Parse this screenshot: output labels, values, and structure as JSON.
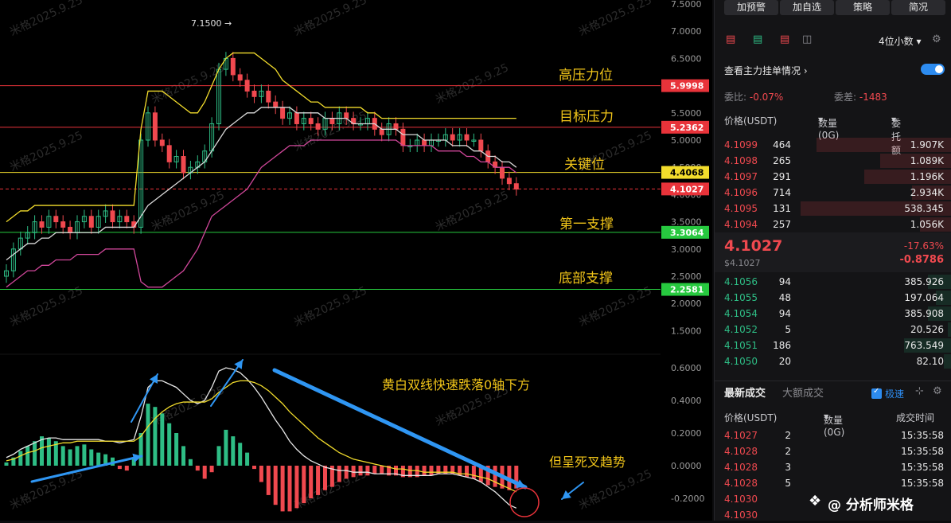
{
  "chart_data": {
    "type": "candlestick",
    "watermark": "米格2025.9.25",
    "peak_label": "7.1500",
    "price_axis": {
      "min": 1.5,
      "max": 7.5,
      "ticks": [
        "7.5000",
        "7.0000",
        "6.5000",
        "6.0000",
        "5.5000",
        "5.0000",
        "4.5000",
        "4.0000",
        "3.5000",
        "3.0000",
        "2.5000",
        "2.0000",
        "1.5000"
      ]
    },
    "macd_axis": {
      "ticks": [
        "0.6000",
        "0.4000",
        "0.2000",
        "0.0000",
        "-0.2000"
      ]
    },
    "levels": [
      {
        "label": "高压力位",
        "price": 5.9998,
        "tag": "5.9998",
        "color": "#e8333a"
      },
      {
        "label": "目标压力",
        "price": 5.2362,
        "tag": "5.2362",
        "color": "#e8333a"
      },
      {
        "label": "关键位",
        "price": 4.4068,
        "tag": "4.4068",
        "color": "#f2dc2c"
      },
      {
        "label": "",
        "price": 4.1027,
        "tag": "4.1027",
        "color": "#e8333a"
      },
      {
        "label": "第一支撑",
        "price": 3.3064,
        "tag": "3.3064",
        "color": "#27c93f"
      },
      {
        "label": "底部支撑",
        "price": 2.2581,
        "tag": "2.2581",
        "color": "#27c93f"
      }
    ],
    "annotations": [
      "黄白双线快速跌落0轴下方",
      "但呈死叉趋势"
    ],
    "closes": [
      2.6,
      3.0,
      3.2,
      3.3,
      3.5,
      3.4,
      3.6,
      3.5,
      3.4,
      3.3,
      3.5,
      3.6,
      3.4,
      3.6,
      3.7,
      3.5,
      3.6,
      3.5,
      3.4,
      5.0,
      5.5,
      5.0,
      4.9,
      4.6,
      4.7,
      4.4,
      4.5,
      4.6,
      4.8,
      5.3,
      6.3,
      6.5,
      6.2,
      6.1,
      5.9,
      5.8,
      5.9,
      5.7,
      5.6,
      5.4,
      5.5,
      5.3,
      5.4,
      5.3,
      5.2,
      5.4,
      5.3,
      5.5,
      5.4,
      5.3,
      5.3,
      5.4,
      5.2,
      5.1,
      5.3,
      5.2,
      4.9,
      4.9,
      5.0,
      4.9,
      5.0,
      5.0,
      5.1,
      5.0,
      5.1,
      5.0,
      5.0,
      4.8,
      4.6,
      4.5,
      4.3,
      4.2,
      4.1
    ],
    "upper_band": [
      3.5,
      3.6,
      3.7,
      3.7,
      3.8,
      3.8,
      3.8,
      3.8,
      3.8,
      3.8,
      3.8,
      3.8,
      3.8,
      3.8,
      3.8,
      3.8,
      3.8,
      3.8,
      3.8,
      5.2,
      5.9,
      5.9,
      5.9,
      5.8,
      5.7,
      5.6,
      5.5,
      5.5,
      5.7,
      6.0,
      6.3,
      6.5,
      6.6,
      6.6,
      6.6,
      6.6,
      6.5,
      6.4,
      6.3,
      6.1,
      6.0,
      5.9,
      5.8,
      5.7,
      5.7,
      5.6,
      5.6,
      5.6,
      5.6,
      5.6,
      5.6,
      5.5,
      5.5,
      5.4,
      5.4,
      5.4,
      5.4,
      5.4,
      5.4,
      5.4,
      5.4,
      5.4,
      5.4,
      5.4,
      5.4,
      5.4,
      5.4,
      5.4,
      5.4,
      5.4,
      5.4,
      5.4,
      5.4
    ],
    "mid_band": [
      2.8,
      2.9,
      3.0,
      3.1,
      3.1,
      3.2,
      3.2,
      3.3,
      3.3,
      3.3,
      3.3,
      3.3,
      3.3,
      3.3,
      3.4,
      3.4,
      3.4,
      3.4,
      3.4,
      3.6,
      3.8,
      3.9,
      4.0,
      4.1,
      4.2,
      4.3,
      4.4,
      4.5,
      4.6,
      4.8,
      5.0,
      5.2,
      5.3,
      5.4,
      5.5,
      5.5,
      5.6,
      5.6,
      5.6,
      5.6,
      5.6,
      5.5,
      5.5,
      5.5,
      5.5,
      5.4,
      5.4,
      5.4,
      5.4,
      5.3,
      5.3,
      5.3,
      5.3,
      5.2,
      5.2,
      5.2,
      5.1,
      5.1,
      5.1,
      5.0,
      5.0,
      5.0,
      5.0,
      4.9,
      4.9,
      4.9,
      4.8,
      4.8,
      4.7,
      4.7,
      4.6,
      4.6,
      4.5
    ],
    "lower_band": [
      2.3,
      2.4,
      2.5,
      2.6,
      2.6,
      2.7,
      2.7,
      2.8,
      2.8,
      2.8,
      2.9,
      2.9,
      2.9,
      2.9,
      3.0,
      3.0,
      3.0,
      3.0,
      3.0,
      2.4,
      2.3,
      2.3,
      2.3,
      2.4,
      2.5,
      2.6,
      2.8,
      3.0,
      3.3,
      3.6,
      3.7,
      3.8,
      3.9,
      4.0,
      4.1,
      4.3,
      4.5,
      4.6,
      4.7,
      4.8,
      4.9,
      4.9,
      4.9,
      5.0,
      5.0,
      5.0,
      5.0,
      5.0,
      5.0,
      5.0,
      5.0,
      5.0,
      5.0,
      5.0,
      5.0,
      5.0,
      4.9,
      4.9,
      4.9,
      4.9,
      4.9,
      4.8,
      4.8,
      4.8,
      4.8,
      4.7,
      4.7,
      4.6,
      4.6,
      4.5,
      4.5,
      4.5,
      4.4
    ],
    "macd_hist": [
      0.02,
      0.05,
      0.09,
      0.12,
      0.15,
      0.18,
      0.17,
      0.15,
      0.12,
      0.1,
      0.12,
      0.13,
      0.1,
      0.08,
      0.07,
      0.05,
      -0.02,
      -0.03,
      0.04,
      0.2,
      0.38,
      0.36,
      0.32,
      0.26,
      0.2,
      0.12,
      0.04,
      -0.03,
      -0.08,
      -0.04,
      0.12,
      0.22,
      0.18,
      0.14,
      0.08,
      -0.02,
      -0.1,
      -0.18,
      -0.24,
      -0.28,
      -0.28,
      -0.26,
      -0.23,
      -0.2,
      -0.18,
      -0.15,
      -0.13,
      -0.1,
      -0.08,
      -0.07,
      -0.06,
      -0.06,
      -0.05,
      -0.05,
      -0.06,
      -0.06,
      -0.07,
      -0.07,
      -0.07,
      -0.06,
      -0.06,
      -0.05,
      -0.05,
      -0.05,
      -0.06,
      -0.07,
      -0.08,
      -0.1,
      -0.12,
      -0.13,
      -0.14,
      -0.15,
      -0.14
    ],
    "dif": [
      0.05,
      0.07,
      0.1,
      0.12,
      0.14,
      0.16,
      0.17,
      0.17,
      0.16,
      0.16,
      0.16,
      0.16,
      0.16,
      0.16,
      0.15,
      0.15,
      0.14,
      0.15,
      0.16,
      0.3,
      0.48,
      0.52,
      0.52,
      0.5,
      0.48,
      0.44,
      0.4,
      0.38,
      0.4,
      0.48,
      0.58,
      0.6,
      0.59,
      0.57,
      0.53,
      0.48,
      0.42,
      0.35,
      0.28,
      0.22,
      0.15,
      0.1,
      0.06,
      0.03,
      0.01,
      -0.01,
      -0.02,
      -0.03,
      -0.03,
      -0.04,
      -0.04,
      -0.04,
      -0.05,
      -0.05,
      -0.05,
      -0.05,
      -0.06,
      -0.06,
      -0.06,
      -0.06,
      -0.06,
      -0.05,
      -0.05,
      -0.05,
      -0.06,
      -0.07,
      -0.08,
      -0.1,
      -0.13,
      -0.16,
      -0.2,
      -0.24,
      -0.26
    ],
    "dea": [
      0.03,
      0.04,
      0.06,
      0.08,
      0.09,
      0.11,
      0.12,
      0.13,
      0.14,
      0.14,
      0.15,
      0.15,
      0.15,
      0.15,
      0.15,
      0.15,
      0.15,
      0.15,
      0.15,
      0.18,
      0.24,
      0.29,
      0.33,
      0.36,
      0.38,
      0.39,
      0.39,
      0.39,
      0.39,
      0.41,
      0.45,
      0.48,
      0.51,
      0.52,
      0.52,
      0.51,
      0.49,
      0.46,
      0.42,
      0.38,
      0.33,
      0.29,
      0.25,
      0.21,
      0.17,
      0.14,
      0.11,
      0.08,
      0.06,
      0.04,
      0.03,
      0.02,
      0.01,
      0.0,
      -0.01,
      -0.02,
      -0.02,
      -0.03,
      -0.03,
      -0.04,
      -0.04,
      -0.04,
      -0.04,
      -0.04,
      -0.05,
      -0.05,
      -0.06,
      -0.07,
      -0.08,
      -0.1,
      -0.12,
      -0.14,
      -0.16
    ]
  },
  "panel": {
    "buttons": [
      "加预警",
      "加自选",
      "策略",
      "简况"
    ],
    "decimals": "4位小数",
    "main_orders_label": "查看主力挂单情况",
    "weibi_label": "委比:",
    "weibi_value": "-0.07%",
    "weicha_label": "委差:",
    "weicha_value": "-1483",
    "col_price": "价格(USDT)",
    "col_qty": "数量 (0G)",
    "col_total": "委托额",
    "asks": [
      {
        "price": "4.1099",
        "qty": "464",
        "total": "1.907K"
      },
      {
        "price": "4.1098",
        "qty": "265",
        "total": "1.089K"
      },
      {
        "price": "4.1097",
        "qty": "291",
        "total": "1.196K"
      },
      {
        "price": "4.1096",
        "qty": "714",
        "total": "2.934K"
      },
      {
        "price": "4.1095",
        "qty": "131",
        "total": "538.345"
      },
      {
        "price": "4.1094",
        "qty": "257",
        "total": "1.056K"
      }
    ],
    "last_price": "4.1027",
    "last_price_usd": "$4.1027",
    "change_pct": "-17.63%",
    "change_abs": "-0.8786",
    "bids": [
      {
        "price": "4.1056",
        "qty": "94",
        "total": "385.926"
      },
      {
        "price": "4.1055",
        "qty": "48",
        "total": "197.064"
      },
      {
        "price": "4.1054",
        "qty": "94",
        "total": "385.908"
      },
      {
        "price": "4.1052",
        "qty": "5",
        "total": "20.526"
      },
      {
        "price": "4.1051",
        "qty": "186",
        "total": "763.549"
      },
      {
        "price": "4.1050",
        "qty": "20",
        "total": "82.10"
      }
    ],
    "tab_latest": "最新成交",
    "tab_large": "大额成交",
    "fast_label": "极速",
    "trade_col_price": "价格(USDT)",
    "trade_col_qty": "数量(0G)",
    "trade_col_time": "成交时间",
    "trades": [
      {
        "price": "4.1027",
        "qty": "2",
        "time": "15:35:58"
      },
      {
        "price": "4.1028",
        "qty": "2",
        "time": "15:35:58"
      },
      {
        "price": "4.1028",
        "qty": "3",
        "time": "15:35:58"
      },
      {
        "price": "4.1028",
        "qty": "5",
        "time": "15:35:58"
      },
      {
        "price": "4.1030",
        "qty": "",
        "time": ""
      },
      {
        "price": "4.1030",
        "qty": "",
        "time": ""
      }
    ],
    "brand": "@ 分析师米格"
  }
}
